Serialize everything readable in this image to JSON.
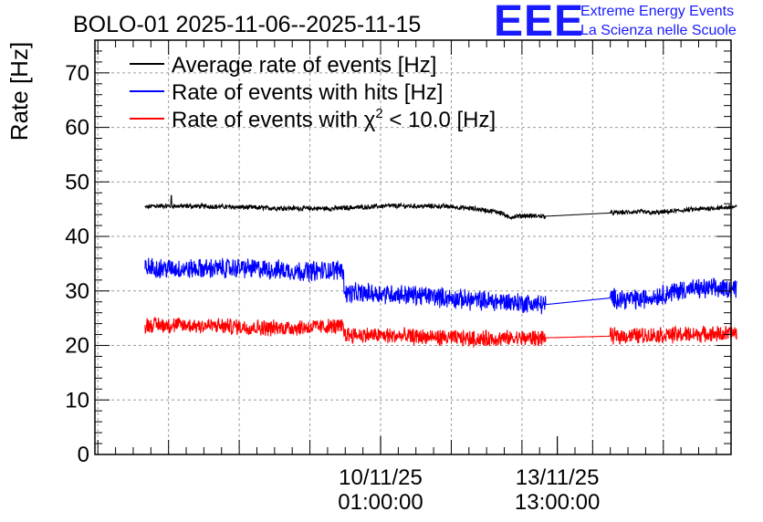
{
  "logo": {
    "text": "EEE",
    "line1": "Extreme Energy Events",
    "line2": "La Scienza nelle Scuole"
  },
  "chart_data": {
    "type": "line",
    "title": "BOLO-01 2025-11-06--2025-11-15",
    "xlabel": "",
    "ylabel": "Rate [Hz]",
    "ylim": [
      0,
      76
    ],
    "yticks": [
      0,
      10,
      20,
      30,
      40,
      50,
      60,
      70
    ],
    "xlim_hours": [
      0,
      216
    ],
    "x_unit": "hours since 2025-11-06 00:00",
    "xticks": [
      {
        "hour": 97,
        "date": "10/11/25",
        "time": "01:00:00"
      },
      {
        "hour": 157,
        "date": "13/11/25",
        "time": "13:00:00"
      }
    ],
    "grid": true,
    "legend_position": "top-left",
    "series": [
      {
        "name": "Average rate of events [Hz]",
        "color": "#000000",
        "noise": 0.4,
        "band": 0,
        "points": [
          [
            17,
            45.3
          ],
          [
            20,
            45.6
          ],
          [
            40,
            45.5
          ],
          [
            60,
            45.2
          ],
          [
            80,
            45.1
          ],
          [
            100,
            45.6
          ],
          [
            120,
            45.5
          ],
          [
            130,
            45.0
          ],
          [
            138,
            44.4
          ],
          [
            140,
            43.5
          ],
          [
            145,
            43.8
          ],
          [
            153,
            43.7
          ],
          [
            175,
            44.3
          ],
          [
            185,
            44.5
          ],
          [
            190,
            44.3
          ],
          [
            200,
            44.8
          ],
          [
            210,
            45.2
          ],
          [
            218,
            45.4
          ]
        ],
        "gaps": [
          [
            153,
            175
          ]
        ],
        "spikes": [
          [
            26,
            47.5
          ]
        ]
      },
      {
        "name": "Rate of events with hits [Hz]",
        "color": "#0000ff",
        "noise": 1.6,
        "band": 3.2,
        "points": [
          [
            17,
            34.3
          ],
          [
            30,
            34.0
          ],
          [
            50,
            34.2
          ],
          [
            70,
            33.6
          ],
          [
            80,
            33.8
          ],
          [
            84,
            34.0
          ],
          [
            85,
            29.6
          ],
          [
            100,
            29.5
          ],
          [
            115,
            29.0
          ],
          [
            125,
            28.4
          ],
          [
            140,
            28.0
          ],
          [
            153,
            27.5
          ],
          [
            175,
            28.7
          ],
          [
            185,
            28.4
          ],
          [
            190,
            29.0
          ],
          [
            200,
            30.3
          ],
          [
            218,
            30.5
          ]
        ],
        "gaps": [
          [
            153,
            175
          ]
        ],
        "spikes": []
      },
      {
        "name": "Rate of events with χ² < 10.0 [Hz]",
        "label_main": "Rate of events with ",
        "label_chi": "χ",
        "label_sup": "2",
        "label_tail": " < 10.0 [Hz]",
        "color": "#ff0000",
        "noise": 1.3,
        "band": 2.6,
        "points": [
          [
            17,
            23.8
          ],
          [
            40,
            23.6
          ],
          [
            60,
            23.2
          ],
          [
            84,
            23.5
          ],
          [
            85,
            22.0
          ],
          [
            110,
            21.6
          ],
          [
            130,
            21.2
          ],
          [
            153,
            21.4
          ],
          [
            175,
            21.7
          ],
          [
            200,
            22.0
          ],
          [
            218,
            22.2
          ]
        ],
        "gaps": [
          [
            153,
            175
          ]
        ],
        "spikes": []
      }
    ]
  }
}
